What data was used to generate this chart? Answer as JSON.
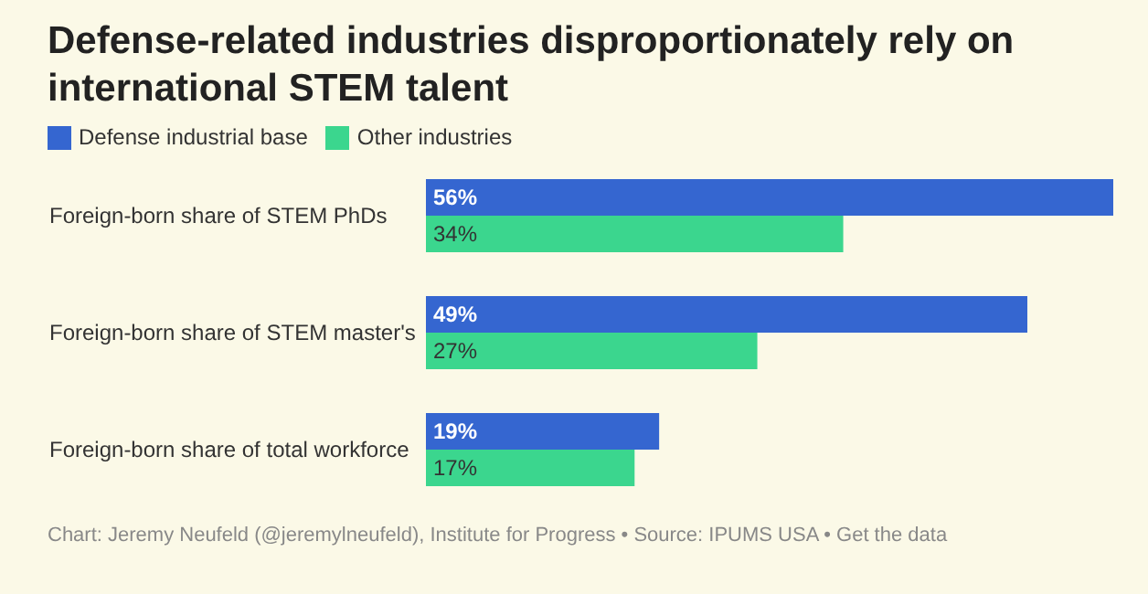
{
  "chart_data": {
    "type": "bar",
    "orientation": "horizontal",
    "title": "Defense-related industries disproportionately rely on international STEM talent",
    "categories": [
      "Foreign-born share of STEM PhDs",
      "Foreign-born share of STEM master's",
      "Foreign-born share of total workforce"
    ],
    "series": [
      {
        "name": "Defense industrial base",
        "color": "#3566d0",
        "values": [
          56,
          49,
          19
        ],
        "value_labels": [
          "56%",
          "49%",
          "19%"
        ]
      },
      {
        "name": "Other industries",
        "color": "#3bd68e",
        "values": [
          34,
          27,
          17
        ],
        "value_labels": [
          "34%",
          "27%",
          "17%"
        ]
      }
    ],
    "legend": "top left",
    "annotations": [
      "Chart: Jeremy Neufeld (@jeremylneufeld), Institute for Progress • Source: IPUMS USA • Get the data"
    ]
  }
}
